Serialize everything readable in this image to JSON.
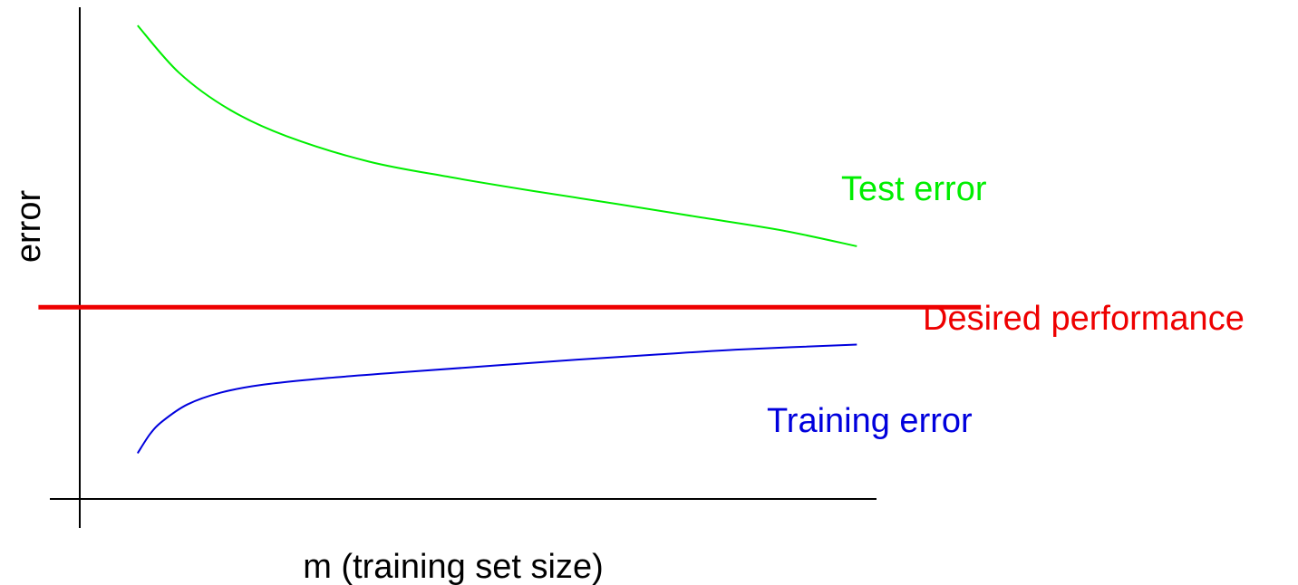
{
  "chart_data": {
    "type": "line",
    "title": "",
    "xlabel": "m (training set size)",
    "ylabel": "error",
    "xlim": [
      0,
      10
    ],
    "ylim": [
      0,
      10
    ],
    "grid": false,
    "ticks": false,
    "series": [
      {
        "name": "Test error",
        "color": "#00ee00",
        "x": [
          0.7,
          1.2,
          1.8,
          2.5,
          3.5,
          4.5,
          5.5,
          6.5,
          7.5,
          8.5,
          9.4
        ],
        "y": [
          9.63,
          8.67,
          7.93,
          7.38,
          6.86,
          6.54,
          6.26,
          6.0,
          5.73,
          5.46,
          5.14
        ]
      },
      {
        "name": "Desired performance",
        "color": "#ee0000",
        "x": [
          -0.5,
          10.9
        ],
        "y": [
          3.9,
          3.9
        ]
      },
      {
        "name": "Training error",
        "color": "#0000dd",
        "x": [
          0.7,
          0.85,
          1.0,
          1.3,
          1.7,
          2.2,
          3.0,
          4.0,
          5.0,
          6.0,
          7.0,
          8.0,
          9.4
        ],
        "y": [
          0.93,
          1.32,
          1.58,
          1.92,
          2.16,
          2.32,
          2.46,
          2.59,
          2.71,
          2.83,
          2.94,
          3.04,
          3.14
        ]
      }
    ]
  }
}
